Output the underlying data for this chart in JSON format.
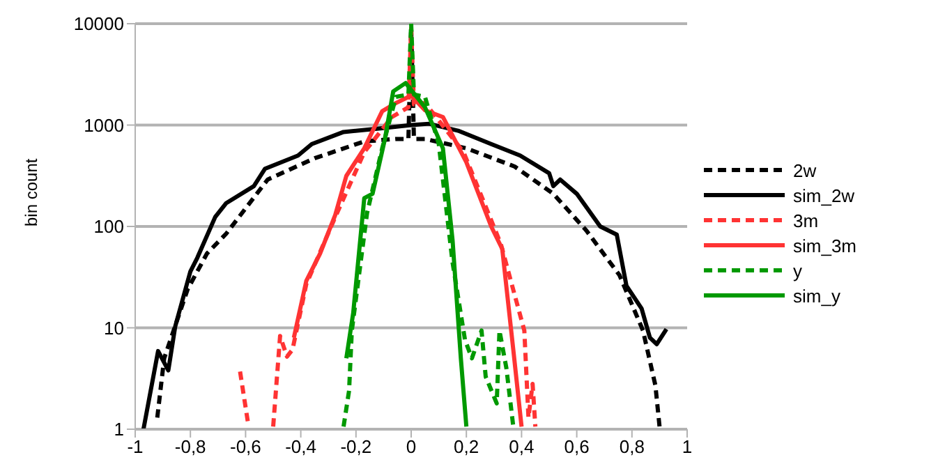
{
  "chart_data": {
    "type": "line",
    "ylabel": "bin count",
    "log": "y",
    "grid": "y",
    "legend": "right",
    "xlim": [
      -1,
      1
    ],
    "xticks": [
      -1,
      {
        "value": -0.8,
        "label": "-0,8"
      },
      {
        "value": -0.6,
        "label": "-0,6"
      },
      {
        "value": -0.4,
        "label": "-0,4"
      },
      {
        "value": -0.2,
        "label": "-0,2"
      },
      0,
      {
        "value": 0.2,
        "label": "0,2"
      },
      {
        "value": 0.4,
        "label": "0,4"
      },
      {
        "value": 0.6,
        "label": "0,6"
      },
      {
        "value": 0.8,
        "label": "0,8"
      },
      1
    ],
    "ylim": [
      1,
      10000
    ],
    "yticks": [
      1,
      10,
      100,
      1000,
      10000
    ],
    "series": [
      {
        "name": "2w",
        "color": "#000000",
        "line_style": "dashed",
        "x": [
          -0.92,
          -0.895,
          -0.81,
          -0.74,
          -0.67,
          -0.52,
          -0.35,
          -0.17,
          -0.055,
          -0.01,
          0,
          0.01,
          0.05,
          0.2,
          0.375,
          0.515,
          0.635,
          0.755,
          0.84,
          0.885,
          0.9
        ],
        "values": [
          1.3,
          5,
          24,
          54,
          85,
          290,
          470,
          690,
          730,
          730,
          9000,
          730,
          730,
          590,
          390,
          210,
          91,
          33,
          9.4,
          2.7,
          1.06
        ]
      },
      {
        "name": "sim_2w",
        "color": "#000000",
        "line_style": "solid",
        "x": [
          -0.97,
          -0.917,
          -0.88,
          -0.855,
          -0.8,
          -0.775,
          -0.71,
          -0.67,
          -0.57,
          -0.53,
          -0.41,
          -0.36,
          -0.245,
          -0.105,
          0,
          0.065,
          0.17,
          0.29,
          0.395,
          0.5,
          0.515,
          0.54,
          0.6,
          0.685,
          0.745,
          0.78,
          0.835,
          0.865,
          0.89,
          0.925
        ],
        "values": [
          1,
          5.9,
          3.8,
          10.3,
          36,
          49,
          124,
          170,
          250,
          370,
          500,
          650,
          855,
          930,
          1000,
          1030,
          880,
          650,
          500,
          335,
          250,
          290,
          210,
          100,
          83,
          26,
          15.5,
          8,
          6.9,
          9.7
        ]
      },
      {
        "name": "3m",
        "color": "#ff3333",
        "line_style": "dashed",
        "x": [
          -0.62,
          -0.59,
          -0.55,
          -0.5,
          -0.475,
          -0.45,
          -0.43,
          -0.38,
          -0.275,
          -0.17,
          -0.07,
          -0.01,
          0,
          0.01,
          0.05,
          0.19,
          0.325,
          0.41,
          0.425,
          0.44,
          0.45
        ],
        "values": [
          3.7,
          1.1,
          null,
          1.06,
          8.3,
          5.2,
          6.1,
          27,
          124,
          540,
          1200,
          1500,
          9000,
          1600,
          1650,
          540,
          67,
          9.4,
          1.3,
          2.8,
          1.06
        ]
      },
      {
        "name": "sim_3m",
        "color": "#ff3333",
        "line_style": "solid",
        "x": [
          -0.425,
          -0.38,
          -0.33,
          -0.275,
          -0.235,
          -0.17,
          -0.105,
          -0.055,
          0,
          0.05,
          0.115,
          0.2,
          0.29,
          0.33,
          0.37,
          0.4
        ],
        "values": [
          8,
          29,
          54,
          130,
          315,
          590,
          1370,
          1650,
          1950,
          1400,
          1200,
          430,
          100,
          60,
          6.1,
          1.06
        ]
      },
      {
        "name": "y",
        "color": "#009900",
        "line_style": "dashed",
        "x": [
          -0.245,
          -0.225,
          -0.215,
          -0.16,
          -0.105,
          -0.055,
          -0.01,
          0,
          0.01,
          0.05,
          0.1,
          0.15,
          0.195,
          0.22,
          0.255,
          0.27,
          0.31,
          0.32,
          0.345,
          0.37
        ],
        "values": [
          1.06,
          2.4,
          9.4,
          135,
          590,
          1900,
          2000,
          10000,
          2000,
          1900,
          650,
          44,
          7.6,
          5,
          9.4,
          3.3,
          1.8,
          9.4,
          4,
          1.06
        ]
      },
      {
        "name": "sim_y",
        "color": "#009900",
        "line_style": "solid",
        "x": [
          -0.235,
          -0.21,
          -0.17,
          -0.14,
          -0.095,
          -0.065,
          -0.02,
          0.05,
          0.115,
          0.15,
          0.18,
          0.2
        ],
        "values": [
          5,
          14,
          190,
          210,
          730,
          2150,
          2600,
          1500,
          590,
          73,
          5,
          1.06
        ]
      }
    ]
  }
}
